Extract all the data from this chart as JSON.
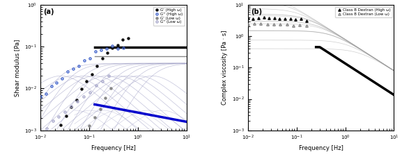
{
  "panel_a": {
    "label": "(a)",
    "xlabel": "Frequency [Hz]",
    "ylabel": "Shear modulus [Pa]",
    "xlim": [
      0.01,
      10
    ],
    "ylim": [
      0.001,
      1
    ],
    "legend": [
      "G' (High ω)",
      "G'' (High ω)",
      "G' (Low ω)",
      "G'' (Low ω)"
    ],
    "light_line_color": "#aaaacc",
    "black": "#111111",
    "gray": "#888888",
    "blue": "#0000cc",
    "blue_open": "#4466cc"
  },
  "panel_b": {
    "label": "(b)",
    "xlabel": "Frequency [Hz]",
    "ylabel": "Complex viscosity [Pa · s]",
    "xlim": [
      0.01,
      10
    ],
    "ylim": [
      0.001,
      10
    ],
    "legend": [
      "Class B Dextran (High ω)",
      "Class B Dextran (Low ω)"
    ],
    "black": "#111111",
    "gray": "#888888",
    "light": "#bbbbbb"
  }
}
